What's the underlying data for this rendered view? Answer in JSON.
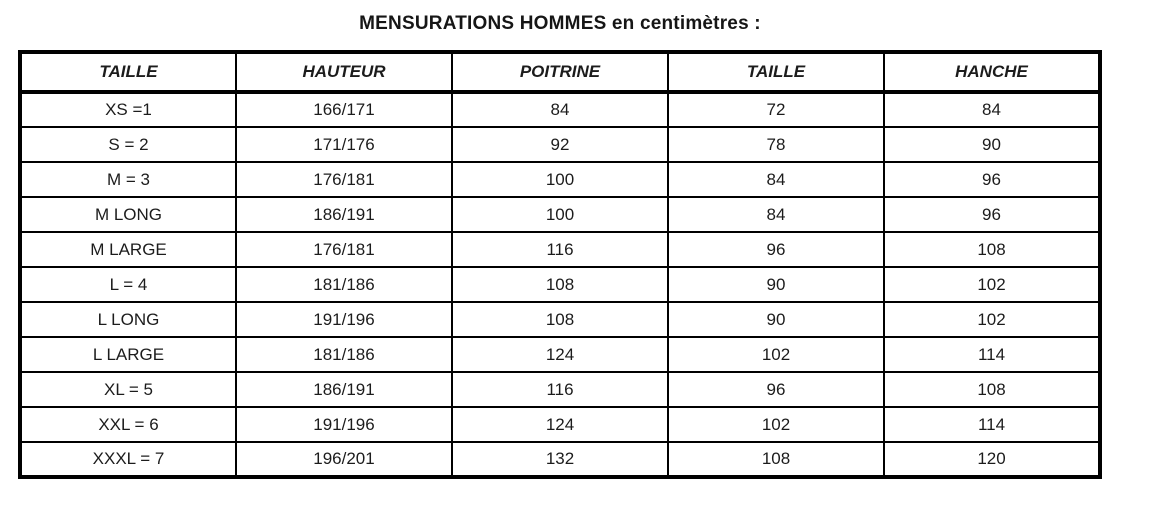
{
  "title": "MENSURATIONS HOMMES en centimètres :",
  "table": {
    "headers": [
      "TAILLE",
      "HAUTEUR",
      "POITRINE",
      "TAILLE",
      "HANCHE"
    ],
    "rows": [
      [
        "XS =1",
        "166/171",
        "84",
        "72",
        "84"
      ],
      [
        "S = 2",
        "171/176",
        "92",
        "78",
        "90"
      ],
      [
        "M = 3",
        "176/181",
        "100",
        "84",
        "96"
      ],
      [
        "M LONG",
        "186/191",
        "100",
        "84",
        "96"
      ],
      [
        "M LARGE",
        "176/181",
        "116",
        "96",
        "108"
      ],
      [
        "L = 4",
        "181/186",
        "108",
        "90",
        "102"
      ],
      [
        "L LONG",
        "191/196",
        "108",
        "90",
        "102"
      ],
      [
        "L LARGE",
        "181/186",
        "124",
        "102",
        "114"
      ],
      [
        "XL = 5",
        "186/191",
        "116",
        "96",
        "108"
      ],
      [
        "XXL = 6",
        "191/196",
        "124",
        "102",
        "114"
      ],
      [
        "XXXL = 7",
        "196/201",
        "132",
        "108",
        "120"
      ]
    ]
  },
  "colors": {
    "background": "#ffffff",
    "border": "#000000",
    "text": "#1a1a1a"
  }
}
